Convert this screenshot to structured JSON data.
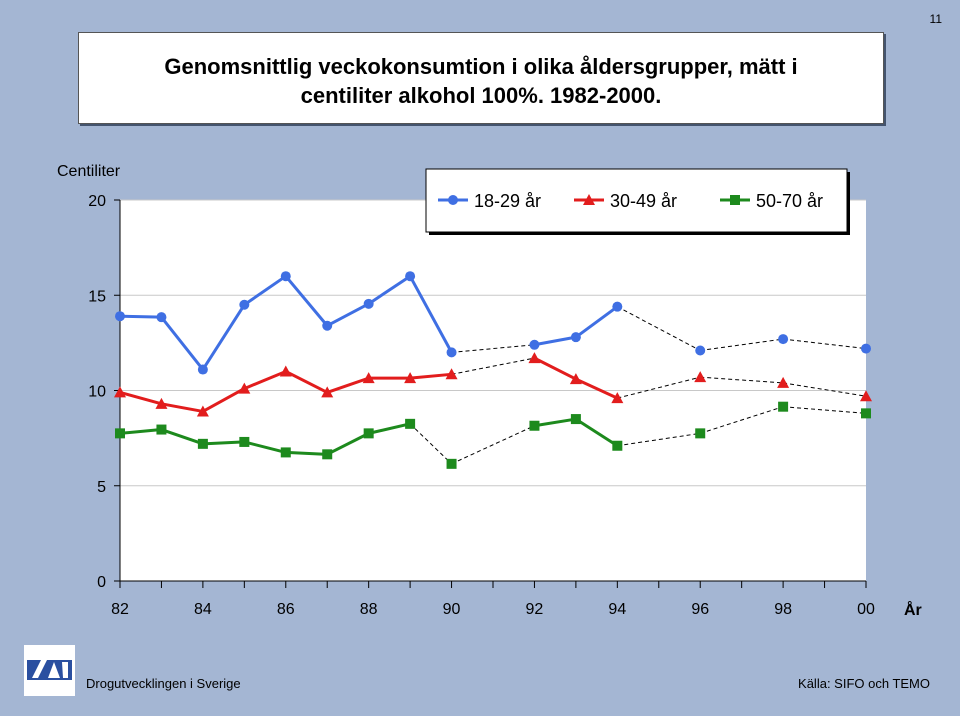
{
  "page_number": "11",
  "title_lines": [
    "Genomsnittlig veckokonsumtion i olika åldersgrupper, mätt i",
    "centiliter alkohol 100%. 1982-2000."
  ],
  "footer": {
    "left": "Drogutvecklingen i Sverige",
    "right": "Källa: SIFO och TEMO",
    "logo_text": "CAN"
  },
  "colors": {
    "background": "#a4b6d3",
    "series_18_29": "#3f6fe3",
    "series_30_49": "#e21d1d",
    "series_50_70": "#1d8a1d",
    "gap_line": "#000000"
  },
  "chart_data": {
    "type": "line",
    "ylabel": "Centiliter",
    "xlabel": "År",
    "ylim": [
      0,
      20
    ],
    "yticks": [
      0,
      5,
      10,
      15,
      20
    ],
    "xlim": [
      1982,
      2000
    ],
    "xticks": [
      1982,
      1984,
      1986,
      1988,
      1990,
      1992,
      1994,
      1996,
      1998,
      2000
    ],
    "xtick_labels": [
      "82",
      "84",
      "86",
      "88",
      "90",
      "92",
      "94",
      "96",
      "98",
      "00"
    ],
    "grid": "horizontal",
    "legend_position": "top",
    "note": "",
    "series": [
      {
        "name": "18-29 år",
        "marker": "circle",
        "color": "#3f6fe3",
        "points": [
          [
            1982,
            13.9
          ],
          [
            1983,
            13.85
          ],
          [
            1984,
            11.1
          ],
          [
            1985,
            14.5
          ],
          [
            1986,
            16.0
          ],
          [
            1987,
            13.4
          ],
          [
            1988,
            14.55
          ],
          [
            1989,
            16.0
          ],
          [
            1990,
            12.0
          ],
          [
            1992,
            12.4
          ],
          [
            1993,
            12.8
          ],
          [
            1994,
            14.4
          ],
          [
            1996,
            12.1
          ],
          [
            1998,
            12.7
          ],
          [
            2000,
            12.2
          ]
        ],
        "solid_segments": [
          [
            1982,
            1990
          ],
          [
            1992,
            1994
          ]
        ]
      },
      {
        "name": "30-49 år",
        "marker": "triangle",
        "color": "#e21d1d",
        "points": [
          [
            1982,
            9.9
          ],
          [
            1983,
            9.3
          ],
          [
            1984,
            8.9
          ],
          [
            1985,
            10.1
          ],
          [
            1986,
            11.0
          ],
          [
            1987,
            9.9
          ],
          [
            1988,
            10.65
          ],
          [
            1989,
            10.65
          ],
          [
            1990,
            10.85
          ],
          [
            1992,
            11.7
          ],
          [
            1993,
            10.6
          ],
          [
            1994,
            9.6
          ],
          [
            1996,
            10.7
          ],
          [
            1998,
            10.4
          ],
          [
            2000,
            9.7
          ]
        ],
        "solid_segments": [
          [
            1982,
            1990
          ],
          [
            1992,
            1994
          ]
        ]
      },
      {
        "name": "50-70 år",
        "marker": "square",
        "color": "#1d8a1d",
        "points": [
          [
            1982,
            7.75
          ],
          [
            1983,
            7.95
          ],
          [
            1984,
            7.2
          ],
          [
            1985,
            7.3
          ],
          [
            1986,
            6.75
          ],
          [
            1987,
            6.65
          ],
          [
            1988,
            7.75
          ],
          [
            1989,
            8.25
          ],
          [
            1990,
            6.15
          ],
          [
            1992,
            8.15
          ],
          [
            1993,
            8.5
          ],
          [
            1994,
            7.1
          ],
          [
            1996,
            7.75
          ],
          [
            1998,
            9.15
          ],
          [
            2000,
            8.8
          ]
        ],
        "solid_segments": [
          [
            1982,
            1989
          ],
          [
            1992,
            1994
          ]
        ]
      }
    ]
  }
}
